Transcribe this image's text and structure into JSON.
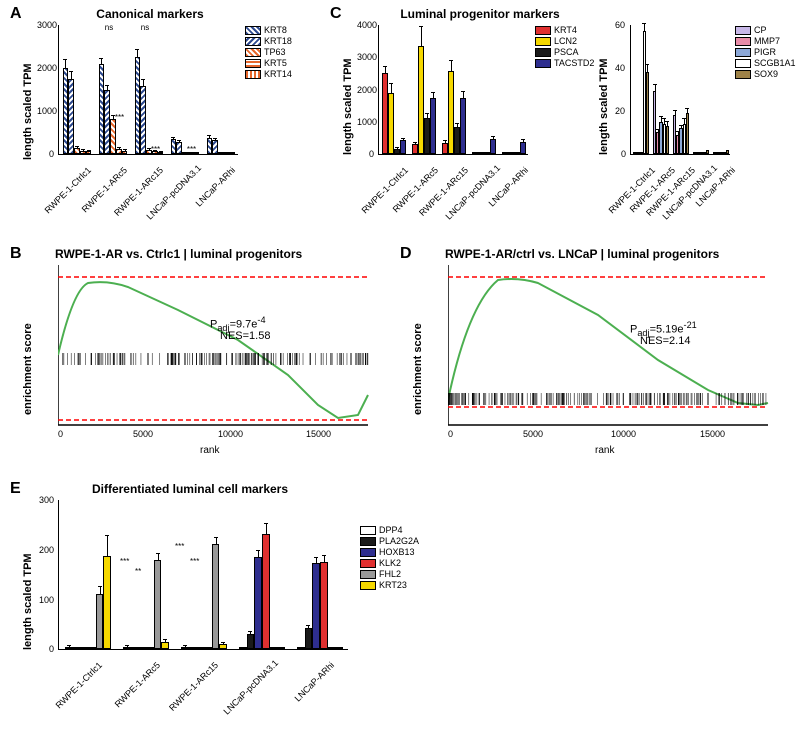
{
  "panelA": {
    "label": "A",
    "title": "Canonical markers",
    "ylabel": "length scaled TPM",
    "ylim": [
      0,
      3000
    ],
    "yticks": [
      0,
      1000,
      2000,
      3000
    ],
    "categories": [
      "RWPE-1-Ctrlc1",
      "RWPE-1-ARc5",
      "RWPE-1-ARc15",
      "LNCaP-pcDNA3.1",
      "LNCaP-ARhi"
    ],
    "series": [
      {
        "name": "KRT8",
        "color": "#2e4a8f",
        "pattern": "hatch",
        "values": [
          1980,
          2080,
          2250,
          350,
          380
        ],
        "errors": [
          180,
          120,
          150,
          30,
          35
        ]
      },
      {
        "name": "KRT18",
        "color": "#2e4a8f",
        "pattern": "hatch",
        "values": [
          1740,
          1480,
          1580,
          280,
          320
        ],
        "errors": [
          150,
          100,
          120,
          25,
          30
        ]
      },
      {
        "name": "TP63",
        "color": "#e8682c",
        "pattern": "hatch",
        "values": [
          150,
          800,
          100,
          0,
          0
        ],
        "errors": [
          20,
          80,
          15,
          0,
          0
        ]
      },
      {
        "name": "KRT5",
        "color": "#e8682c",
        "pattern": "hatch",
        "values": [
          80,
          120,
          60,
          0,
          0
        ],
        "errors": [
          10,
          15,
          8,
          0,
          0
        ]
      },
      {
        "name": "KRT14",
        "color": "#e8682c",
        "pattern": "hatch",
        "values": [
          60,
          80,
          50,
          0,
          0
        ],
        "errors": [
          8,
          10,
          7,
          0,
          0
        ]
      }
    ],
    "sig": {
      "1": [
        "ns",
        "",
        "***"
      ],
      "2": [
        "ns",
        "***",
        "***"
      ]
    }
  },
  "panelB": {
    "label": "B",
    "title": "RWPE-1-AR vs. Ctrlc1 | luminal progenitors",
    "ylabel": "enrichment score",
    "xlabel": "rank",
    "ylim": [
      -0.3,
      0.4
    ],
    "yticks": [
      -0.2,
      0,
      0.2,
      0.4
    ],
    "xlim": [
      0,
      17500
    ],
    "xticks": [
      0,
      5000,
      10000,
      15000
    ],
    "line_color": "#4caf50",
    "dash_color": "#ff0000",
    "upper_dash": 0.37,
    "lower_dash": -0.27,
    "p_text": "Padj=9.7e-4",
    "nes_text": "NES=1.58"
  },
  "panelC": {
    "label": "C",
    "title": "Luminal progenitor markers",
    "ylabel": "length scaled TPM",
    "left": {
      "ylim": [
        0,
        4000
      ],
      "yticks": [
        0,
        1000,
        2000,
        3000,
        4000
      ],
      "categories": [
        "RWPE-1-Ctrlc1",
        "RWPE-1-ARc5",
        "RWPE-1-ARc15",
        "LNCaP-pcDNA3.1",
        "LNCaP-ARhi"
      ],
      "series": [
        {
          "name": "KRT4",
          "color": "#e03030",
          "values": [
            2480,
            300,
            350,
            0,
            0
          ],
          "errors": [
            200,
            40,
            45,
            0,
            0
          ]
        },
        {
          "name": "LCN2",
          "color": "#f5d800",
          "values": [
            1880,
            3320,
            2560,
            0,
            0
          ],
          "errors": [
            280,
            600,
            300,
            0,
            0
          ]
        },
        {
          "name": "PSCA",
          "color": "#1a1a1a",
          "values": [
            150,
            1120,
            830,
            0,
            0
          ],
          "errors": [
            20,
            100,
            80,
            0,
            0
          ]
        },
        {
          "name": "TACSTD2",
          "color": "#2e2e8f",
          "values": [
            420,
            1720,
            1720,
            450,
            380
          ],
          "errors": [
            50,
            150,
            180,
            60,
            50
          ]
        }
      ]
    },
    "right": {
      "ylim": [
        0,
        60
      ],
      "yticks": [
        0,
        20,
        40,
        60
      ],
      "categories": [
        "RWPE-1-Ctrlc1",
        "RWPE-1-ARc5",
        "RWPE-1-ARc15",
        "LNCaP-pcDNA3.1",
        "LNCaP-ARhi"
      ],
      "series": [
        {
          "name": "CP",
          "color": "#c8b8e8",
          "values": [
            1,
            29,
            18,
            1,
            1
          ],
          "errors": [
            0,
            3,
            2,
            0,
            0
          ]
        },
        {
          "name": "MMP7",
          "color": "#e88ca8",
          "values": [
            1,
            10,
            9,
            0,
            0
          ],
          "errors": [
            0,
            1,
            1,
            0,
            0
          ]
        },
        {
          "name": "PIGR",
          "color": "#8ca8d8",
          "values": [
            1,
            15,
            12,
            0,
            0
          ],
          "errors": [
            0,
            2,
            1,
            0,
            0
          ]
        },
        {
          "name": "SCGB1A1",
          "color": "#ffffff",
          "values": [
            57,
            14,
            14,
            0,
            0
          ],
          "errors": [
            3,
            2,
            2,
            0,
            0
          ]
        },
        {
          "name": "SOX9",
          "color": "#9e8248",
          "values": [
            38,
            13,
            19,
            2,
            2
          ],
          "errors": [
            3,
            2,
            2,
            0,
            0
          ]
        }
      ]
    }
  },
  "panelD": {
    "label": "D",
    "title": "RWPE-1-AR/ctrl vs. LNCaP | luminal progenitors",
    "ylabel": "enrichment score",
    "xlabel": "rank",
    "ylim": [
      -0.1,
      0.7
    ],
    "yticks": [
      0,
      0.2,
      0.4,
      0.6
    ],
    "xlim": [
      0,
      18000
    ],
    "xticks": [
      0,
      5000,
      10000,
      15000
    ],
    "line_color": "#4caf50",
    "dash_color": "#ff0000",
    "upper_dash": 0.65,
    "lower_dash": -0.02,
    "p_text": "Padj=5.19e-21",
    "nes_text": "NES=2.14"
  },
  "panelE": {
    "label": "E",
    "title": "Differentiated luminal cell markers",
    "ylabel": "length scaled TPM",
    "ylim": [
      0,
      300
    ],
    "yticks": [
      0,
      100,
      200,
      300
    ],
    "categories": [
      "RWPE-1-Ctrlc1",
      "RWPE-1-ARc5",
      "RWPE-1-ARc15",
      "LNCaP-pcDNA3.1",
      "LNCaP-ARhi"
    ],
    "series": [
      {
        "name": "DPP4",
        "color": "#ffffff",
        "values": [
          5,
          5,
          5,
          3,
          3
        ],
        "errors": [
          1,
          1,
          1,
          0,
          0
        ]
      },
      {
        "name": "PLA2G2A",
        "color": "#1a1a1a",
        "values": [
          2,
          2,
          2,
          30,
          42
        ],
        "errors": [
          0,
          0,
          0,
          5,
          5
        ]
      },
      {
        "name": "HOXB13",
        "color": "#2e2e8f",
        "values": [
          1,
          1,
          1,
          185,
          172
        ],
        "errors": [
          0,
          0,
          0,
          12,
          10
        ]
      },
      {
        "name": "KLK2",
        "color": "#e03030",
        "values": [
          1,
          1,
          1,
          230,
          175
        ],
        "errors": [
          0,
          0,
          0,
          20,
          12
        ]
      },
      {
        "name": "FHL2",
        "color": "#999999",
        "values": [
          110,
          178,
          210,
          3,
          3
        ],
        "errors": [
          15,
          12,
          12,
          0,
          0
        ]
      },
      {
        "name": "KRT23",
        "color": "#f5d800",
        "values": [
          187,
          15,
          10,
          3,
          3
        ],
        "errors": [
          40,
          3,
          2,
          0,
          0
        ]
      }
    ]
  }
}
